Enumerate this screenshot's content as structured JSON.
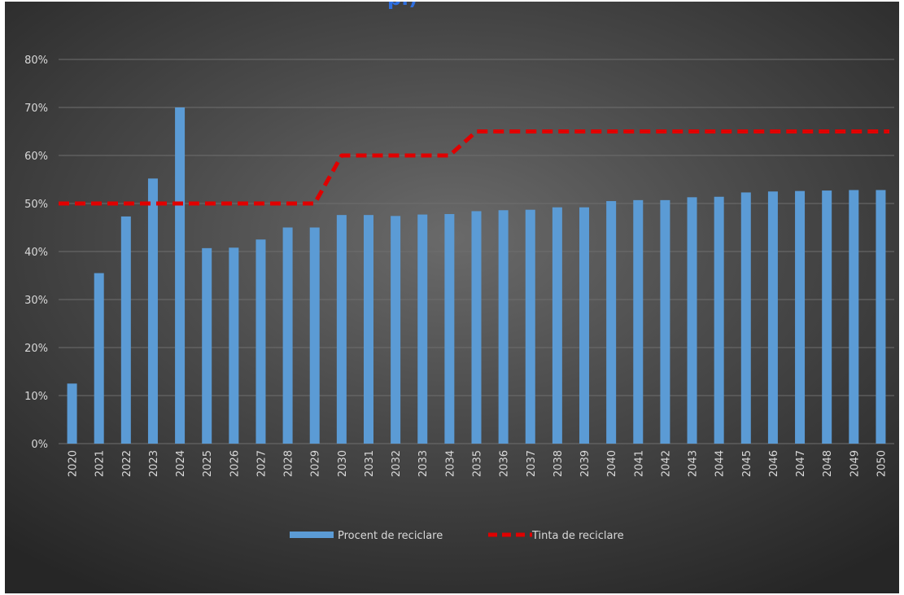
{
  "header": {
    "title_fragment": "p.)"
  },
  "colors": {
    "bars": "#5b9bd5",
    "target_line": "#e00000",
    "background": "#4a4a4a",
    "text": "#d9d9d9",
    "title": "#2f6fe0"
  },
  "chart_data": {
    "type": "bar",
    "title": "",
    "xlabel": "",
    "ylabel": "",
    "categories": [
      "2020",
      "2021",
      "2022",
      "2023",
      "2024",
      "2025",
      "2026",
      "2027",
      "2028",
      "2029",
      "2030",
      "2031",
      "2032",
      "2033",
      "2034",
      "2035",
      "2036",
      "2037",
      "2038",
      "2039",
      "2040",
      "2041",
      "2042",
      "2043",
      "2044",
      "2045",
      "2046",
      "2047",
      "2048",
      "2049",
      "2050"
    ],
    "ylim": [
      0,
      80
    ],
    "yticks": [
      0,
      10,
      20,
      30,
      40,
      50,
      60,
      70,
      80
    ],
    "ytick_labels": [
      "0%",
      "10%",
      "20%",
      "30%",
      "40%",
      "50%",
      "60%",
      "70%",
      "80%"
    ],
    "grid": true,
    "legend_position": "bottom",
    "series": [
      {
        "name": "Procent de reciclare",
        "type": "bar",
        "values": [
          12.5,
          35.5,
          47.3,
          55.2,
          70.0,
          40.7,
          40.8,
          42.5,
          45.0,
          45.0,
          47.6,
          47.6,
          47.4,
          47.7,
          47.8,
          48.4,
          48.6,
          48.7,
          49.2,
          49.2,
          50.5,
          50.7,
          50.7,
          51.3,
          51.4,
          52.3,
          52.5,
          52.6,
          52.7,
          52.8,
          52.8
        ]
      },
      {
        "name": "Tinta de reciclare",
        "type": "line",
        "style": "dashed",
        "values": [
          50,
          50,
          50,
          50,
          50,
          50,
          50,
          50,
          50,
          50,
          60,
          60,
          60,
          60,
          60,
          65,
          65,
          65,
          65,
          65,
          65,
          65,
          65,
          65,
          65,
          65,
          65,
          65,
          65,
          65,
          65
        ]
      }
    ]
  }
}
